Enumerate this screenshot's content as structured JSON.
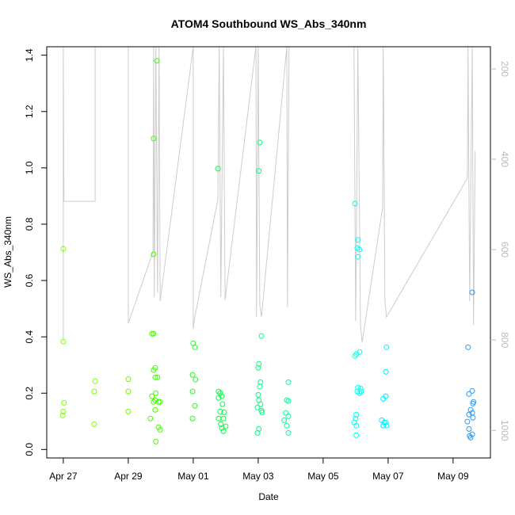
{
  "chart_data": {
    "type": "scatter",
    "title": "ATOM4 Southbound WS_Abs_340nm",
    "xlabel": "Date",
    "ylabel": "WS_Abs_340nm",
    "xlim": [
      -0.51,
      13.15
    ],
    "xticks": [
      {
        "value": 0,
        "label": "Apr 27"
      },
      {
        "value": 2,
        "label": "Apr 29"
      },
      {
        "value": 4,
        "label": "May 01"
      },
      {
        "value": 6,
        "label": "May 03"
      },
      {
        "value": 8,
        "label": "May 05"
      },
      {
        "value": 10,
        "label": "May 07"
      },
      {
        "value": 12,
        "label": "May 09"
      }
    ],
    "ylim": [
      -0.03,
      1.43
    ],
    "yticks": [
      {
        "value": 0,
        "label": "0.0"
      },
      0.2,
      0.4,
      0.6,
      0.8,
      {
        "value": 1,
        "label": "1.0"
      },
      1.2,
      1.4
    ],
    "y2lim": [
      1061,
      151
    ],
    "y2ticks": [
      200,
      400,
      600,
      800,
      1000
    ],
    "series": [
      {
        "type": "line",
        "axis": "y2",
        "color": "#cccccc",
        "x": [
          0,
          0,
          0.02,
          0.98,
          0.98,
          2.0,
          2.0,
          2.76,
          2.78,
          2.8,
          2.85,
          2.9,
          2.95,
          2.98,
          4.0,
          4.0,
          4.05,
          4.76,
          4.8,
          4.85,
          4.93,
          4.98,
          5.93,
          5.95,
          6.0,
          6.05,
          6.1,
          6.88,
          6.9,
          6.95,
          8.95,
          9.0,
          9.07,
          9.15,
          9.2,
          9.83,
          9.85,
          9.9,
          9.95,
          12.44,
          12.46,
          12.51,
          12.59,
          12.63,
          12.68
        ],
        "values": [
          802,
          151,
          493,
          493,
          151,
          151,
          763,
          605,
          151,
          705,
          151,
          696,
          151,
          714,
          151,
          775,
          749,
          489,
          151,
          705,
          151,
          711,
          151,
          749,
          151,
          723,
          749,
          151,
          728,
          151,
          151,
          758,
          151,
          767,
          805,
          507,
          151,
          714,
          749,
          442,
          151,
          714,
          151,
          767,
          381
        ]
      },
      {
        "color": "#80ff00",
        "x": [
          0,
          0,
          0.02,
          0,
          -0.02
        ],
        "values": [
          0.713,
          0.383,
          0.166,
          0.135,
          0.121
        ]
      },
      {
        "color": "#80ff00",
        "x": [
          0.98,
          0.95,
          0.95
        ],
        "values": [
          0.242,
          0.206,
          0.09
        ]
      },
      {
        "color": "#66ff00",
        "x": [
          2.0,
          2.0,
          2.0
        ],
        "values": [
          0.25,
          0.206,
          0.135
        ]
      },
      {
        "color": "#40ff00",
        "x": [
          2.88,
          2.78,
          2.78,
          2.73,
          2.78,
          2.83,
          2.78,
          2.9,
          2.83,
          2.73,
          2.85,
          2.83,
          2.93,
          2.98,
          2.78,
          2.83,
          2.68,
          2.93,
          2.98,
          2.85
        ],
        "values": [
          1.38,
          1.104,
          0.693,
          0.411,
          0.411,
          0.29,
          0.282,
          0.256,
          0.256,
          0.189,
          0.2,
          0.175,
          0.169,
          0.169,
          0.169,
          0.141,
          0.11,
          0.079,
          0.07,
          0.028
        ]
      },
      {
        "color": "#20ff20",
        "x": [
          4.0,
          4.05,
          3.98,
          4.07,
          3.98,
          4.05,
          3.98
        ],
        "values": [
          0.377,
          0.363,
          0.265,
          0.248,
          0.206,
          0.155,
          0.11
        ]
      },
      {
        "color": "#00ff40",
        "x": [
          4.76,
          4.78,
          4.83,
          4.88,
          4.78,
          4.9,
          4.83,
          4.95,
          4.78,
          4.93,
          4.85,
          5.0,
          4.88,
          4.93
        ],
        "values": [
          0.997,
          0.206,
          0.2,
          0.189,
          0.183,
          0.161,
          0.135,
          0.132,
          0.11,
          0.11,
          0.09,
          0.082,
          0.076,
          0.065
        ]
      },
      {
        "color": "#00ff80",
        "x": [
          6.05,
          6.02,
          6.1,
          6.02,
          6.0,
          6.07,
          6.05,
          6.0,
          6.02,
          6.07,
          5.98,
          6.1,
          6.12,
          6.02,
          5.98
        ],
        "values": [
          1.09,
          0.989,
          0.403,
          0.304,
          0.29,
          0.239,
          0.223,
          0.194,
          0.175,
          0.161,
          0.149,
          0.138,
          0.132,
          0.073,
          0.059
        ]
      },
      {
        "color": "#00ff99",
        "x": [
          6.93,
          6.88,
          6.93,
          6.85,
          6.93,
          6.8,
          6.88,
          6.93
        ],
        "values": [
          0.239,
          0.175,
          0.172,
          0.13,
          0.118,
          0.104,
          0.085,
          0.059
        ]
      },
      {
        "color": "#00ffee",
        "x": [
          8.98,
          9.07,
          9.05,
          9.12,
          9.07,
          9.12,
          9.02,
          8.98,
          9.07,
          9.15,
          9.12,
          9.05,
          9.17,
          9.02,
          9.0,
          8.95,
          9.02,
          9.02
        ],
        "values": [
          0.873,
          0.744,
          0.715,
          0.71,
          0.684,
          0.346,
          0.338,
          0.332,
          0.22,
          0.217,
          0.2,
          0.206,
          0.206,
          0.124,
          0.11,
          0.096,
          0.085,
          0.051
        ]
      },
      {
        "color": "#00eeff",
        "x": [
          9.95,
          9.93,
          9.93,
          9.85,
          9.8,
          9.88,
          9.93,
          9.85,
          9.95
        ],
        "values": [
          0.363,
          0.276,
          0.189,
          0.18,
          0.104,
          0.096,
          0.096,
          0.085,
          0.085
        ]
      },
      {
        "color": "#3399ee",
        "x": [
          12.59,
          12.46,
          12.59,
          12.49,
          12.63,
          12.61,
          12.54,
          12.59,
          12.49,
          12.61,
          12.44,
          12.49,
          12.59,
          12.51,
          12.54
        ],
        "values": [
          0.558,
          0.363,
          0.208,
          0.197,
          0.169,
          0.163,
          0.141,
          0.13,
          0.124,
          0.113,
          0.099,
          0.073,
          0.054,
          0.048,
          0.042
        ]
      }
    ]
  }
}
